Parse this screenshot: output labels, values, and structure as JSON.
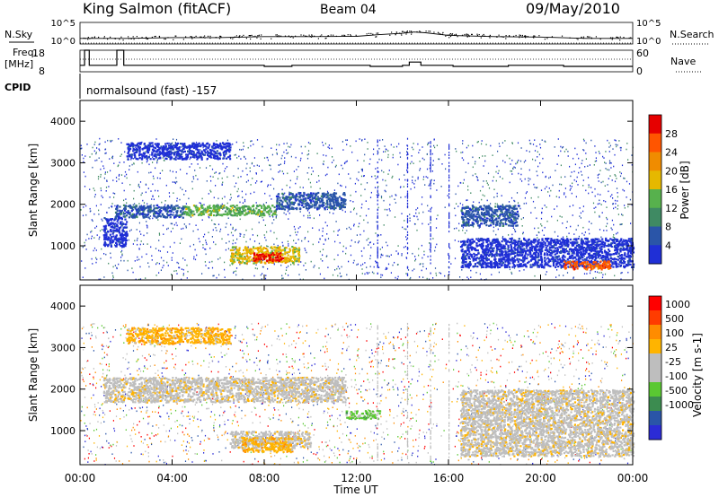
{
  "header": {
    "station": "King Salmon (fitACF)",
    "beam": "Beam 04",
    "date": "09/May/2010"
  },
  "top_panel": {
    "nsky_label": "N.Sky",
    "nsearch_label": "N.Search",
    "nsky_ticks": [
      "10^5",
      "10^0"
    ],
    "nsearch_ticks": [
      "10^5",
      "10^0"
    ],
    "freq_label": "Freq.",
    "freq_unit": "[MHz]",
    "freq_ticks": [
      "18",
      "8"
    ],
    "nave_label": "Nave",
    "nave_ticks": [
      "60",
      "0"
    ],
    "cpid_label": "CPID",
    "cpid_text": "normalsound (fast) -157"
  },
  "colors": {
    "power_scale": [
      "#1f2fd6",
      "#2a55a8",
      "#3f8a63",
      "#57b14d",
      "#e6b800",
      "#f08c00",
      "#ff5500",
      "#e60000"
    ],
    "velocity_scale": [
      "#ff0000",
      "#ff3c00",
      "#ff8c00",
      "#ffb400",
      "#bebebe",
      "#bebebe",
      "#5ac832",
      "#3c8c50",
      "#2a55a8",
      "#2b2bd6"
    ]
  },
  "chart_data": [
    {
      "type": "line",
      "title": "N.Sky / N.Search",
      "xlabel": "",
      "ylabel": "",
      "x_range_hours": [
        0,
        24
      ],
      "y_scale": "log",
      "ylim": [
        1,
        100000
      ],
      "series": [
        {
          "name": "N.Sky",
          "style": "solid",
          "x": [
            0,
            2,
            4,
            6,
            8,
            10,
            12,
            13,
            14,
            14.5,
            15,
            16,
            18,
            20,
            22,
            24
          ],
          "y": [
            20,
            20,
            30,
            30,
            50,
            50,
            60,
            150,
            300,
            600,
            400,
            100,
            50,
            40,
            20,
            20
          ]
        },
        {
          "name": "N.Search",
          "style": "dotted",
          "x": [
            0,
            24
          ],
          "y": [
            1,
            1
          ]
        }
      ]
    },
    {
      "type": "line",
      "title": "Freq. / Nave",
      "xlabel": "",
      "ylabel": "[MHz]",
      "x_range_hours": [
        0,
        24
      ],
      "ylim": [
        8,
        18
      ],
      "y2lim": [
        0,
        60
      ],
      "series": [
        {
          "name": "Freq.",
          "style": "solid",
          "x": [
            0,
            0.2,
            0.2,
            0.4,
            0.4,
            1.6,
            1.6,
            1.9,
            1.9,
            8.0,
            8.0,
            9.2,
            9.2,
            12.6,
            12.6,
            14.0,
            14.0,
            14.3,
            14.3,
            14.8,
            14.8,
            16.2,
            16.2,
            18.6,
            18.6,
            21.0,
            21.0,
            24
          ],
          "y": [
            11,
            11,
            18,
            18,
            11,
            11,
            18,
            18,
            11,
            11,
            10.5,
            10.5,
            11,
            11,
            10.5,
            10.5,
            11,
            11,
            12.5,
            12.5,
            11,
            11,
            10.5,
            10.5,
            11,
            11,
            10.5,
            10.5
          ]
        },
        {
          "name": "Nave",
          "style": "dotted",
          "x": [
            0,
            24
          ],
          "y2": [
            30,
            30
          ]
        }
      ]
    },
    {
      "type": "heatmap",
      "title": "",
      "quantity": "Power",
      "xlabel": "",
      "ylabel": "Slant Range [km]",
      "x_range_hours": [
        0,
        24
      ],
      "xticks": [
        "00:00",
        "04:00",
        "08:00",
        "12:00",
        "16:00",
        "20:00",
        "00:00"
      ],
      "ylim": [
        180,
        4500
      ],
      "yticks": [
        1000,
        2000,
        3000,
        4000
      ],
      "colorbar_label": "Power [dB]",
      "colorbar_ticks": [
        "4",
        "8",
        "12",
        "16",
        "20",
        "24",
        "28"
      ],
      "regions": [
        {
          "t": [
            1.0,
            2.0
          ],
          "r": [
            1000,
            1700
          ],
          "level": 0
        },
        {
          "t": [
            1.5,
            4.5
          ],
          "r": [
            1700,
            2000
          ],
          "level": 1
        },
        {
          "t": [
            4.5,
            8.5
          ],
          "r": [
            1750,
            2000
          ],
          "level": 3
        },
        {
          "t": [
            8.5,
            11.5
          ],
          "r": [
            1900,
            2300
          ],
          "level": 1
        },
        {
          "t": [
            2.0,
            6.5
          ],
          "r": [
            3100,
            3500
          ],
          "level": 0
        },
        {
          "t": [
            6.5,
            9.5
          ],
          "r": [
            600,
            1000
          ],
          "level": 4
        },
        {
          "t": [
            7.5,
            8.8
          ],
          "r": [
            650,
            850
          ],
          "level": 7
        },
        {
          "t": [
            16.5,
            19.0
          ],
          "r": [
            1500,
            2000
          ],
          "level": 1
        },
        {
          "t": [
            16.5,
            24.0
          ],
          "r": [
            500,
            1200
          ],
          "level": 0
        },
        {
          "t": [
            21.0,
            23.0
          ],
          "r": [
            450,
            650
          ],
          "level": 6
        }
      ]
    },
    {
      "type": "heatmap",
      "title": "",
      "quantity": "Velocity",
      "xlabel": "Time UT",
      "ylabel": "Slant Range [km]",
      "x_range_hours": [
        0,
        24
      ],
      "xticks": [
        "00:00",
        "04:00",
        "08:00",
        "12:00",
        "16:00",
        "20:00",
        "00:00"
      ],
      "ylim": [
        180,
        4500
      ],
      "yticks": [
        1000,
        2000,
        3000,
        4000
      ],
      "colorbar_label": "Velocity [m s-1]",
      "colorbar_ticks": [
        "1000",
        "500",
        "100",
        "25",
        "-25",
        "-100",
        "-500",
        "-1000"
      ],
      "regions": [
        {
          "t": [
            1.0,
            11.5
          ],
          "r": [
            1700,
            2300
          ],
          "level": 4
        },
        {
          "t": [
            6.5,
            10.0
          ],
          "r": [
            600,
            1000
          ],
          "level": 4
        },
        {
          "t": [
            7.0,
            9.2
          ],
          "r": [
            500,
            850
          ],
          "level": 3
        },
        {
          "t": [
            11.5,
            13.0
          ],
          "r": [
            1300,
            1500
          ],
          "level": 6
        },
        {
          "t": [
            16.5,
            24.0
          ],
          "r": [
            400,
            2000
          ],
          "level": 4
        },
        {
          "t": [
            2.0,
            6.5
          ],
          "r": [
            3100,
            3500
          ],
          "level": 3
        }
      ]
    }
  ]
}
